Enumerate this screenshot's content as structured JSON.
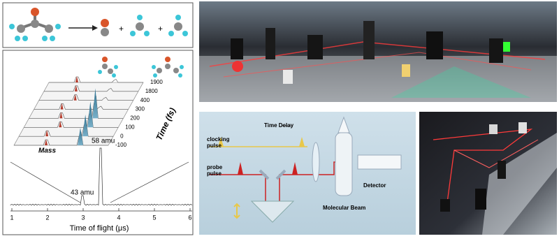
{
  "waterfall": {
    "mass_label": "Mass",
    "time_label": "Time (fs)",
    "time_ticks": [
      1900,
      1800,
      400,
      300,
      200,
      100,
      0,
      -100
    ]
  },
  "spectrum": {
    "annotations": [
      "58 amu",
      "43 amu"
    ],
    "x_label": "Time of flight (μs)",
    "x_ticks": [
      1,
      2,
      3,
      4,
      5,
      6
    ]
  },
  "diagram": {
    "time_delay": "Time Delay",
    "clocking_pulse": [
      "clocking",
      "pulse"
    ],
    "probe_pulse": [
      "probe",
      "pulse"
    ],
    "detector": "Detector",
    "molecular_beam": "Molecular Beam"
  }
}
